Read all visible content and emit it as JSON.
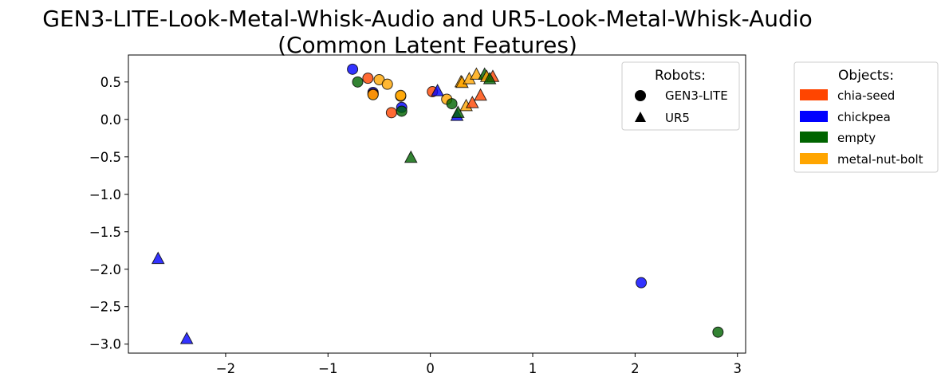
{
  "chart_data": {
    "type": "scatter",
    "title_line1": "GEN3-LITE-Look-Metal-Whisk-Audio and UR5-Look-Metal-Whisk-Audio",
    "title_line2": "(Common Latent Features)",
    "xlabel": "",
    "ylabel": "",
    "xlim": [
      -2.95,
      3.08
    ],
    "ylim": [
      -3.12,
      0.86
    ],
    "x_ticks": [
      -2,
      -1,
      0,
      1,
      2,
      3
    ],
    "x_tick_labels": [
      "−2",
      "−1",
      "0",
      "1",
      "2",
      "3"
    ],
    "y_ticks": [
      0.5,
      0.0,
      -0.5,
      -1.0,
      -1.5,
      -2.0,
      -2.5,
      -3.0
    ],
    "y_tick_labels": [
      "0.5",
      "0.0",
      "−0.5",
      "−1.0",
      "−1.5",
      "−2.0",
      "−2.5",
      "−3.0"
    ],
    "grid": false,
    "object_colors": {
      "chia-seed": "#ff4500",
      "chickpea": "#0000ff",
      "empty": "#006400",
      "metal-nut-bolt": "#ffa500"
    },
    "robot_markers": {
      "GEN3-LITE": "circle",
      "UR5": "triangle"
    },
    "points": [
      {
        "robot": "GEN3-LITE",
        "object": "chickpea",
        "x": -0.76,
        "y": 0.67
      },
      {
        "robot": "GEN3-LITE",
        "object": "empty",
        "x": -0.71,
        "y": 0.5
      },
      {
        "robot": "GEN3-LITE",
        "object": "chia-seed",
        "x": -0.61,
        "y": 0.55
      },
      {
        "robot": "GEN3-LITE",
        "object": "metal-nut-bolt",
        "x": -0.5,
        "y": 0.53
      },
      {
        "robot": "GEN3-LITE",
        "object": "metal-nut-bolt",
        "x": -0.42,
        "y": 0.47
      },
      {
        "robot": "GEN3-LITE",
        "object": "chickpea",
        "x": -0.56,
        "y": 0.36
      },
      {
        "robot": "GEN3-LITE",
        "object": "chia-seed",
        "x": -0.56,
        "y": 0.34
      },
      {
        "robot": "GEN3-LITE",
        "object": "metal-nut-bolt",
        "x": -0.56,
        "y": 0.33
      },
      {
        "robot": "GEN3-LITE",
        "object": "metal-nut-bolt",
        "x": -0.29,
        "y": 0.31
      },
      {
        "robot": "GEN3-LITE",
        "object": "metal-nut-bolt",
        "x": -0.29,
        "y": 0.32
      },
      {
        "robot": "GEN3-LITE",
        "object": "chia-seed",
        "x": -0.38,
        "y": 0.09
      },
      {
        "robot": "GEN3-LITE",
        "object": "chickpea",
        "x": -0.28,
        "y": 0.16
      },
      {
        "robot": "GEN3-LITE",
        "object": "empty",
        "x": -0.28,
        "y": 0.11
      },
      {
        "robot": "GEN3-LITE",
        "object": "chia-seed",
        "x": 0.02,
        "y": 0.37
      },
      {
        "robot": "GEN3-LITE",
        "object": "metal-nut-bolt",
        "x": 0.16,
        "y": 0.27
      },
      {
        "robot": "GEN3-LITE",
        "object": "empty",
        "x": 0.21,
        "y": 0.21
      },
      {
        "robot": "GEN3-LITE",
        "object": "chickpea",
        "x": 2.06,
        "y": -2.18
      },
      {
        "robot": "GEN3-LITE",
        "object": "empty",
        "x": 2.81,
        "y": -2.84
      },
      {
        "robot": "UR5",
        "object": "chickpea",
        "x": 0.07,
        "y": 0.38
      },
      {
        "robot": "UR5",
        "object": "chickpea",
        "x": 0.26,
        "y": 0.05
      },
      {
        "robot": "UR5",
        "object": "empty",
        "x": 0.27,
        "y": 0.09
      },
      {
        "robot": "UR5",
        "object": "metal-nut-bolt",
        "x": 0.3,
        "y": 0.5
      },
      {
        "robot": "UR5",
        "object": "metal-nut-bolt",
        "x": 0.31,
        "y": 0.49
      },
      {
        "robot": "UR5",
        "object": "metal-nut-bolt",
        "x": 0.35,
        "y": 0.18
      },
      {
        "robot": "UR5",
        "object": "chia-seed",
        "x": 0.41,
        "y": 0.22
      },
      {
        "robot": "UR5",
        "object": "metal-nut-bolt",
        "x": 0.38,
        "y": 0.54
      },
      {
        "robot": "UR5",
        "object": "metal-nut-bolt",
        "x": 0.45,
        "y": 0.6
      },
      {
        "robot": "UR5",
        "object": "chia-seed",
        "x": 0.49,
        "y": 0.32
      },
      {
        "robot": "UR5",
        "object": "empty",
        "x": 0.53,
        "y": 0.6
      },
      {
        "robot": "UR5",
        "object": "metal-nut-bolt",
        "x": 0.55,
        "y": 0.57
      },
      {
        "robot": "UR5",
        "object": "chia-seed",
        "x": 0.61,
        "y": 0.57
      },
      {
        "robot": "UR5",
        "object": "empty",
        "x": 0.58,
        "y": 0.54
      },
      {
        "robot": "UR5",
        "object": "empty",
        "x": -0.19,
        "y": -0.51
      },
      {
        "robot": "UR5",
        "object": "chickpea",
        "x": -2.66,
        "y": -1.86
      },
      {
        "robot": "UR5",
        "object": "chickpea",
        "x": -2.38,
        "y": -2.93
      }
    ],
    "legend_robots": {
      "title": "Robots:",
      "placement": "upper-right-inside",
      "items": [
        {
          "label": "GEN3-LITE",
          "marker": "circle"
        },
        {
          "label": "UR5",
          "marker": "triangle"
        }
      ]
    },
    "legend_objects": {
      "title": "Objects:",
      "placement": "outside-right",
      "items": [
        {
          "label": "chia-seed",
          "color": "#ff4500"
        },
        {
          "label": "chickpea",
          "color": "#0000ff"
        },
        {
          "label": "empty",
          "color": "#006400"
        },
        {
          "label": "metal-nut-bolt",
          "color": "#ffa500"
        }
      ]
    }
  }
}
